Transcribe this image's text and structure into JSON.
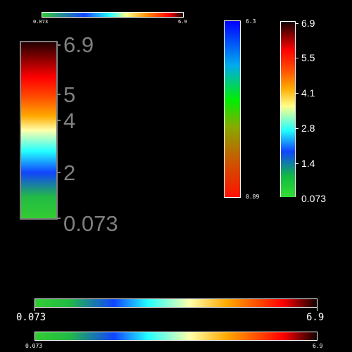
{
  "colorbars": {
    "top_small": {
      "min_label": "0.073",
      "max_label": "6.9"
    },
    "left_large": {
      "labels": [
        "6.9",
        "5",
        "4",
        "2",
        "0.073"
      ]
    },
    "middle_vertical": {
      "max_label": "6.3",
      "min_label": "0.89"
    },
    "right_vertical": {
      "labels": [
        "6.9",
        "5.5",
        "4.1",
        "2.8",
        "1.4",
        "0.073"
      ]
    },
    "bottom_large": {
      "min_label": "0.073",
      "max_label": "6.9"
    },
    "bottom_small": {
      "min_label": "0.073",
      "max_label": "6.9"
    }
  },
  "colors": {
    "background": "#000000",
    "left_bar_border": "#808080",
    "left_bar_labels": "#808080",
    "other_labels": "#ffffff"
  }
}
